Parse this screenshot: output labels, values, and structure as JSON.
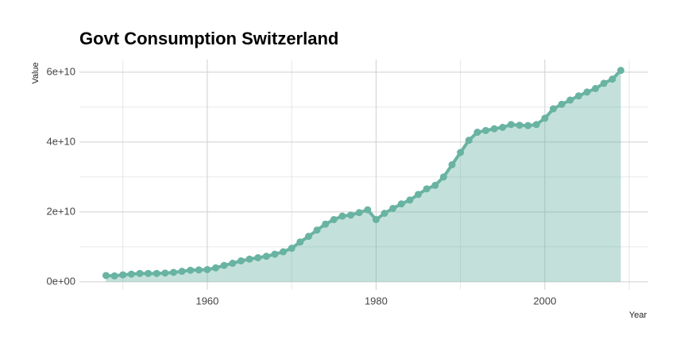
{
  "chart_data": {
    "type": "area",
    "title": "Govt Consumption Switzerland",
    "x_label": "Year",
    "y_label": "Value",
    "x": [
      1948,
      1949,
      1950,
      1951,
      1952,
      1953,
      1954,
      1955,
      1956,
      1957,
      1958,
      1959,
      1960,
      1961,
      1962,
      1963,
      1964,
      1965,
      1966,
      1967,
      1968,
      1969,
      1970,
      1971,
      1972,
      1973,
      1974,
      1975,
      1976,
      1977,
      1978,
      1979,
      1980,
      1981,
      1982,
      1983,
      1984,
      1985,
      1986,
      1987,
      1988,
      1989,
      1990,
      1991,
      1992,
      1993,
      1994,
      1995,
      1996,
      1997,
      1998,
      1999,
      2000,
      2001,
      2002,
      2003,
      2004,
      2005,
      2006,
      2007,
      2008,
      2009
    ],
    "values": [
      1800000000.0,
      1700000000.0,
      2000000000.0,
      2200000000.0,
      2400000000.0,
      2400000000.0,
      2400000000.0,
      2500000000.0,
      2700000000.0,
      3000000000.0,
      3300000000.0,
      3400000000.0,
      3500000000.0,
      4000000000.0,
      4700000000.0,
      5300000000.0,
      6000000000.0,
      6500000000.0,
      6900000000.0,
      7300000000.0,
      7900000000.0,
      8600000000.0,
      9600000000.0,
      11400000000.0,
      13000000000.0,
      14800000000.0,
      16500000000.0,
      17800000000.0,
      18800000000.0,
      19100000000.0,
      19800000000.0,
      20600000000.0,
      17800000000.0,
      19600000000.0,
      21000000000.0,
      22300000000.0,
      23400000000.0,
      25000000000.0,
      26600000000.0,
      27600000000.0,
      30000000000.0,
      33500000000.0,
      37000000000.0,
      40500000000.0,
      42800000000.0,
      43300000000.0,
      43800000000.0,
      44200000000.0,
      45000000000.0,
      44800000000.0,
      44700000000.0,
      45000000000.0,
      46800000000.0,
      49500000000.0,
      50800000000.0,
      52000000000.0,
      53200000000.0,
      54300000000.0,
      55300000000.0,
      56800000000.0,
      58000000000.0,
      60500000000.0
    ],
    "color": "#69b3a2",
    "xlim": [
      1944.85,
      2012.25
    ],
    "ylim": [
      -2300000000.0,
      63600000000.0
    ],
    "xticks": [
      1960,
      1980,
      2000
    ],
    "yticks": [
      {
        "value": 0,
        "label": "0e+00"
      },
      {
        "value": 20000000000.0,
        "label": "2e+10"
      },
      {
        "value": 40000000000.0,
        "label": "4e+10"
      },
      {
        "value": 60000000000.0,
        "label": "6e+10"
      }
    ],
    "xminor": [
      1950,
      1970,
      1990,
      2010
    ],
    "yminor": [
      10000000000.0,
      30000000000.0,
      50000000000.0
    ],
    "grid": true
  }
}
